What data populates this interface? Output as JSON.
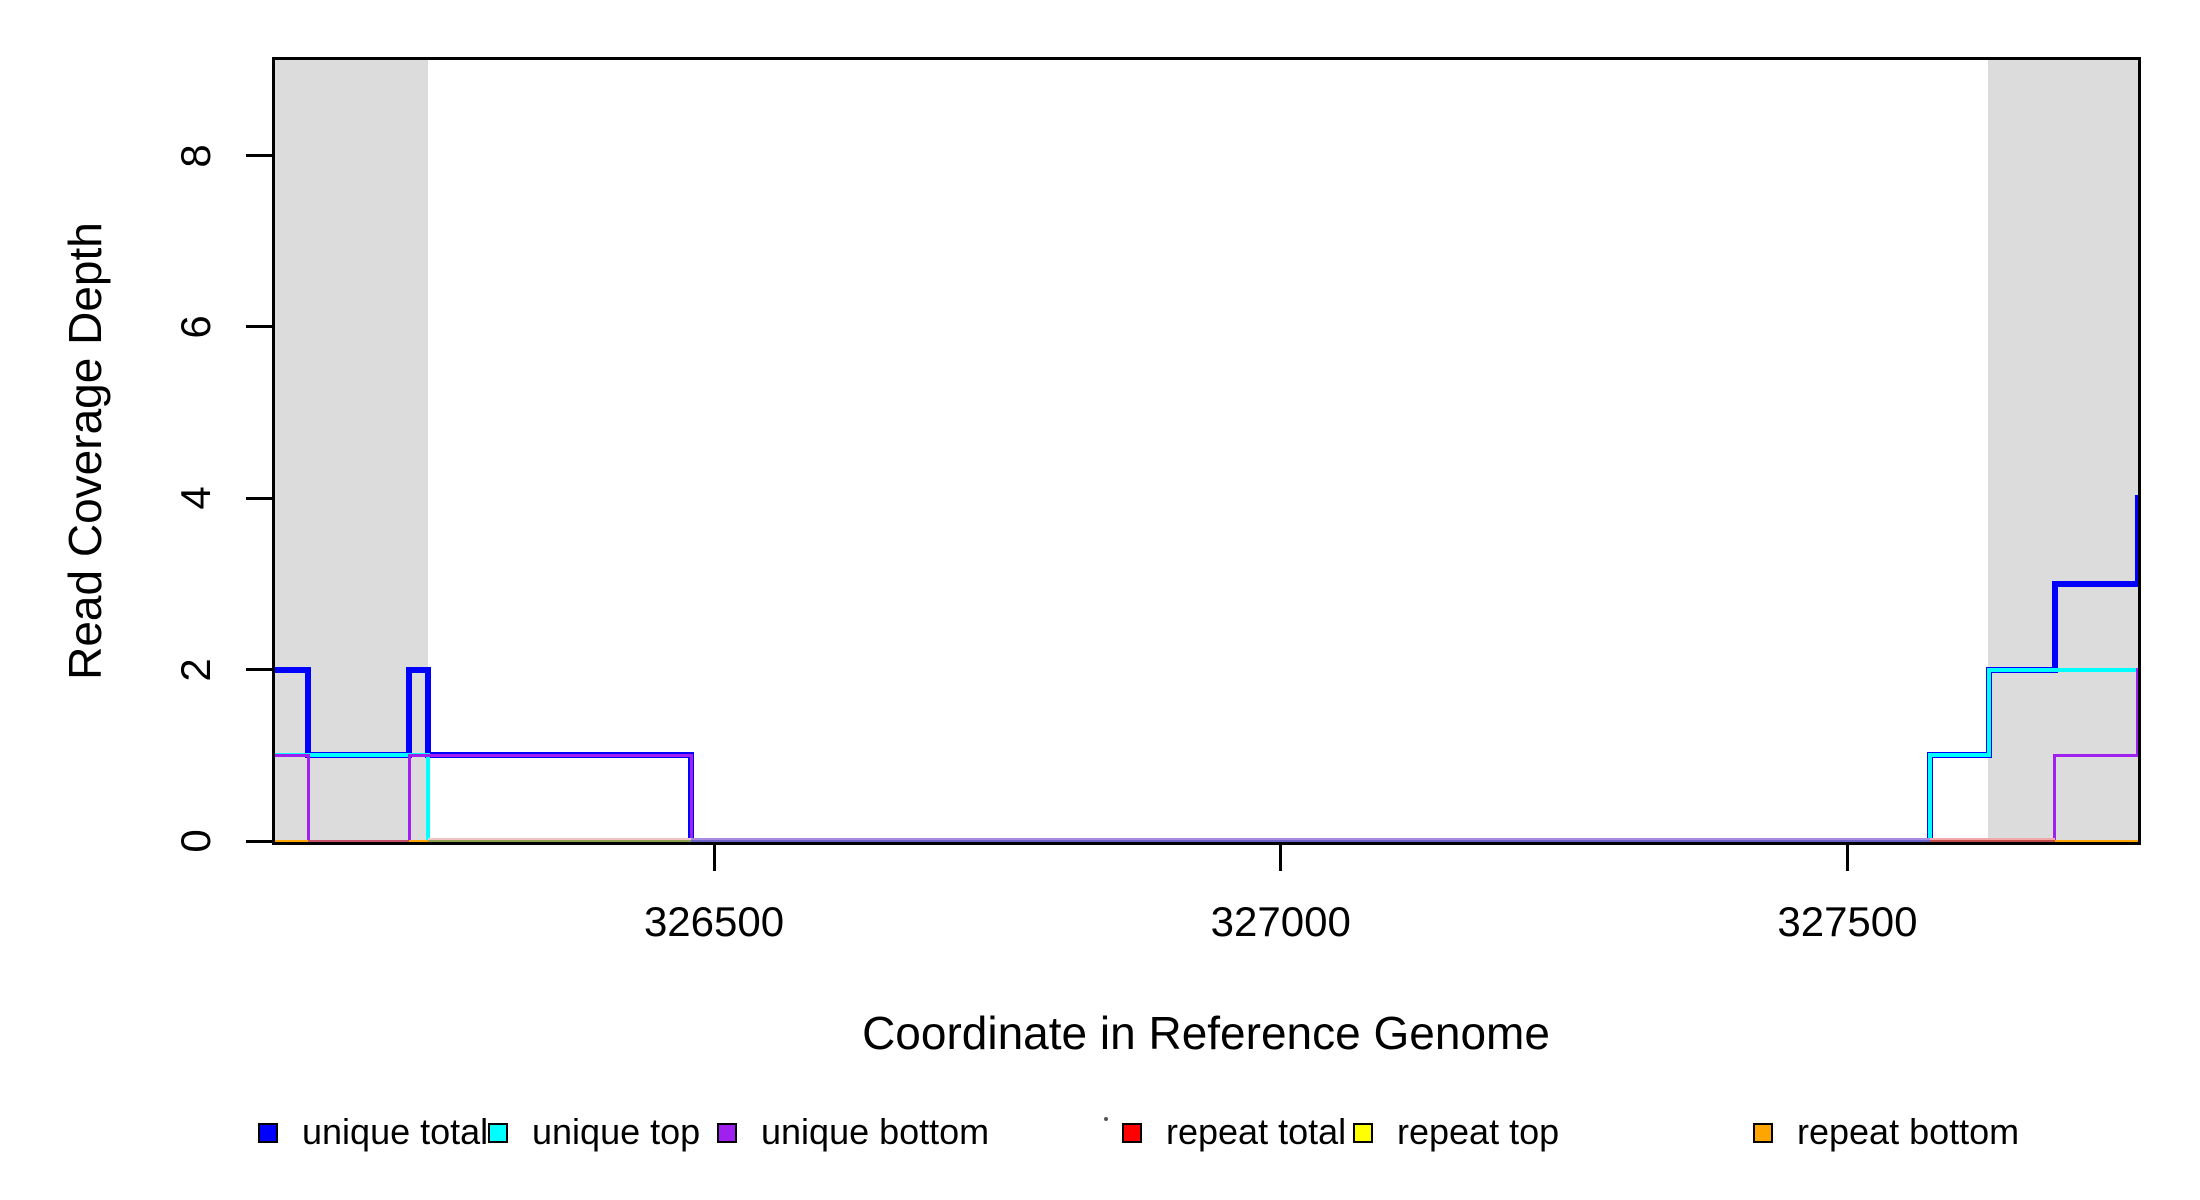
{
  "figure": {
    "background": "#FFFFFF",
    "plot_border_color": "#000000",
    "shaded_region_color": "#DCDCDC"
  },
  "axes": {
    "x": {
      "title": "Coordinate in Reference Genome",
      "ticks": [
        {
          "value": 326500,
          "label": "326500"
        },
        {
          "value": 327000,
          "label": "327000"
        },
        {
          "value": 327500,
          "label": "327500"
        }
      ]
    },
    "y": {
      "title": "Read Coverage Depth",
      "ticks": [
        {
          "value": 0,
          "label": "0"
        },
        {
          "value": 2,
          "label": "2"
        },
        {
          "value": 4,
          "label": "4"
        },
        {
          "value": 6,
          "label": "6"
        },
        {
          "value": 8,
          "label": "8"
        }
      ]
    }
  },
  "legend": {
    "items": [
      {
        "label": "unique total",
        "color": "#0000FF"
      },
      {
        "label": "unique top",
        "color": "#00FFFF"
      },
      {
        "label": "unique bottom",
        "color": "#A020F0"
      },
      {
        "label": "repeat total",
        "color": "#FF0000"
      },
      {
        "label": "repeat top",
        "color": "#FFFF00"
      },
      {
        "label": "repeat bottom",
        "color": "#FFA500"
      }
    ],
    "stray_mark": {
      "present": true,
      "between": "unique bottom / repeat total"
    }
  },
  "chart_data": {
    "type": "line",
    "subtype": "step",
    "title": "",
    "xlabel": "Coordinate in Reference Genome",
    "ylabel": "Read Coverage Depth",
    "xlim": [
      326110,
      327759
    ],
    "ylim": [
      0,
      9.15
    ],
    "x_ticks": [
      326500,
      327000,
      327500
    ],
    "y_ticks": [
      0,
      2,
      4,
      6,
      8
    ],
    "grid": false,
    "legend_position": "bottom-horizontal",
    "shaded_regions": [
      {
        "x1": 326110,
        "x2": 326248
      },
      {
        "x1": 327624,
        "x2": 327759
      }
    ],
    "series": [
      {
        "name": "unique total",
        "color": "#0000FF",
        "segments": [
          [
            326110,
            326142,
            2
          ],
          [
            326142,
            326231,
            1
          ],
          [
            326231,
            326248,
            2
          ],
          [
            326248,
            326480,
            1
          ],
          [
            326480,
            327573,
            0
          ],
          [
            327573,
            327625,
            1
          ],
          [
            327625,
            327683,
            2
          ],
          [
            327683,
            327756,
            3
          ],
          [
            327756,
            327759,
            4
          ]
        ]
      },
      {
        "name": "unique top",
        "color": "#00FFFF",
        "segments": [
          [
            326110,
            326248,
            1
          ],
          [
            326248,
            327573,
            0
          ],
          [
            327573,
            327625,
            1
          ],
          [
            327625,
            327759,
            2
          ]
        ]
      },
      {
        "name": "unique bottom",
        "color": "#A020F0",
        "segments": [
          [
            326110,
            326142,
            1
          ],
          [
            326142,
            326231,
            0
          ],
          [
            326231,
            326480,
            1
          ],
          [
            326480,
            327683,
            0
          ],
          [
            327683,
            327756,
            1
          ],
          [
            327756,
            327759,
            2
          ]
        ]
      },
      {
        "name": "repeat total",
        "color": "#FF0000",
        "segments": [
          [
            326110,
            327759,
            0
          ]
        ]
      },
      {
        "name": "repeat top",
        "color": "#FFFF00",
        "segments": [
          [
            326110,
            327759,
            0
          ]
        ]
      },
      {
        "name": "repeat bottom",
        "color": "#FFA500",
        "segments": [
          [
            326110,
            327759,
            0
          ]
        ]
      }
    ],
    "zero_line_appearance": [
      {
        "x1": 326110,
        "x2": 326142,
        "color": "#FFA500"
      },
      {
        "x1": 326142,
        "x2": 326231,
        "color": "#C35068"
      },
      {
        "x1": 326231,
        "x2": 326248,
        "color": "#FFA500"
      },
      {
        "x1": 326248,
        "x2": 326480,
        "color": "#8CA050",
        "fringe": "#EEC4C4"
      },
      {
        "x1": 326480,
        "x2": 327573,
        "color": "#6A62C8",
        "fringe": "#A98BE0"
      },
      {
        "x1": 327573,
        "x2": 327683,
        "color": "#C54B4B",
        "fringe": "#F0A8A8"
      },
      {
        "x1": 327683,
        "x2": 327759,
        "color": "#FFA500"
      }
    ]
  }
}
